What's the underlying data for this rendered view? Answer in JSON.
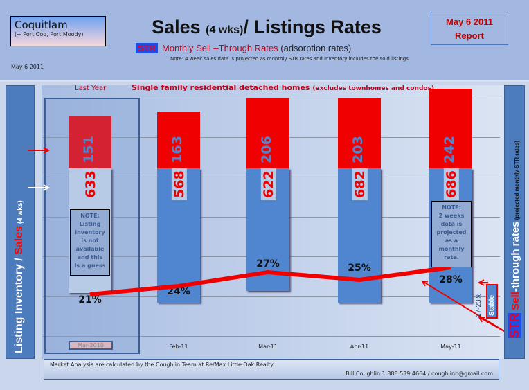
{
  "header": {
    "location": "Coquitlam",
    "location_sub": "(+ Port Coq, Port Moody)",
    "title_main": "Sales ",
    "title_small": "(4 wks)",
    "title_rest": "/ Listings Rates",
    "str_badge": "STR",
    "subtitle": "Monthly Sell –Through Rates ",
    "subtitle_paren": "(adsorption rates)",
    "note": "Note: 4 week sales data is projected  as monthly  STR rates and inventory includes  the sold listings.",
    "date": "May 6 2011",
    "report_line1": "May 6 2011",
    "report_line2": "Report"
  },
  "left_axis": {
    "part1": "Listing Inventory / ",
    "part2": "Sales",
    "part3": " (4  wks)"
  },
  "right_axis": {
    "str": "STR",
    "sell": " Sell",
    "rest": "-through rates",
    "small": "  (projected monthly STR rates)"
  },
  "annotations": {
    "last_year": "Last Year",
    "chart_title": "Single family residential detached homes ",
    "chart_title_small": "(excludes townhomes and condos)",
    "note_last_year": "NOTE:\nListing\ninventory\nis  not\navailable\nand this\nIs a guess",
    "note_may": "NOTE:\n2 weeks\ndata is\nprojected\nas a\nmonthly\nrate.",
    "range": "17-23%",
    "stable": "Stable"
  },
  "footer": {
    "line1": "Market Analysis are calculated by  the  Coughlin Team at Re/Max Little Oak Realty.",
    "line2": "Bill Coughlin 1 888 539 4664 / coughlinb@gmail.com"
  },
  "chart_data": {
    "type": "bar",
    "title": "Sales (4 wks)/ Listings Rates",
    "categories": [
      "Mar-2010",
      "Feb-11",
      "Mar-11",
      "Apr-11",
      "May-11"
    ],
    "series": [
      {
        "name": "Sales (4 wks)",
        "values": [
          151,
          163,
          206,
          203,
          242
        ],
        "color": "#f00000"
      },
      {
        "name": "Listing Inventory",
        "values": [
          633,
          568,
          622,
          682,
          686
        ],
        "color": "#4f86cf"
      },
      {
        "name": "STR Sell-through rate (%)",
        "type": "line",
        "values": [
          21,
          24,
          27,
          25,
          28
        ],
        "color": "#f00000"
      }
    ],
    "ylabel": "Listing Inventory / Sales (4 wks)",
    "y2label": "STR Sell-through rates (projected monthly STR rates)",
    "grid": true
  }
}
